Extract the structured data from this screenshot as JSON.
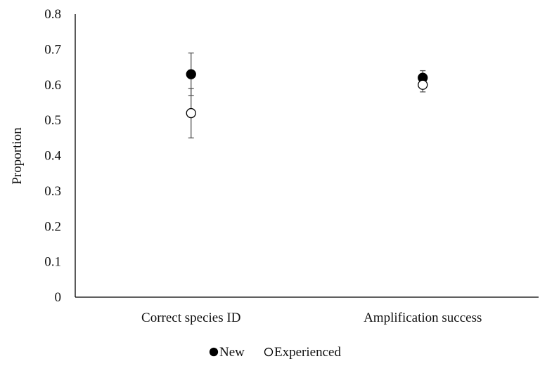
{
  "chart_data": {
    "type": "scatter",
    "title": "",
    "xlabel": "",
    "ylabel": "Proportion",
    "ylim": [
      0,
      0.8
    ],
    "yticks": [
      "0",
      "0.1",
      "0.2",
      "0.3",
      "0.4",
      "0.5",
      "0.6",
      "0.7",
      "0.8"
    ],
    "categories": [
      "Correct species ID",
      "Amplification success"
    ],
    "grid": false,
    "legend_position": "bottom",
    "series": [
      {
        "name": "New",
        "marker": "filled-circle",
        "color": "#000000",
        "values": [
          0.63,
          0.62
        ],
        "error": [
          0.06,
          0.02
        ]
      },
      {
        "name": "Experienced",
        "marker": "open-circle",
        "color": "#000000",
        "values": [
          0.52,
          0.6
        ],
        "error": [
          0.07,
          0.02
        ]
      }
    ]
  }
}
